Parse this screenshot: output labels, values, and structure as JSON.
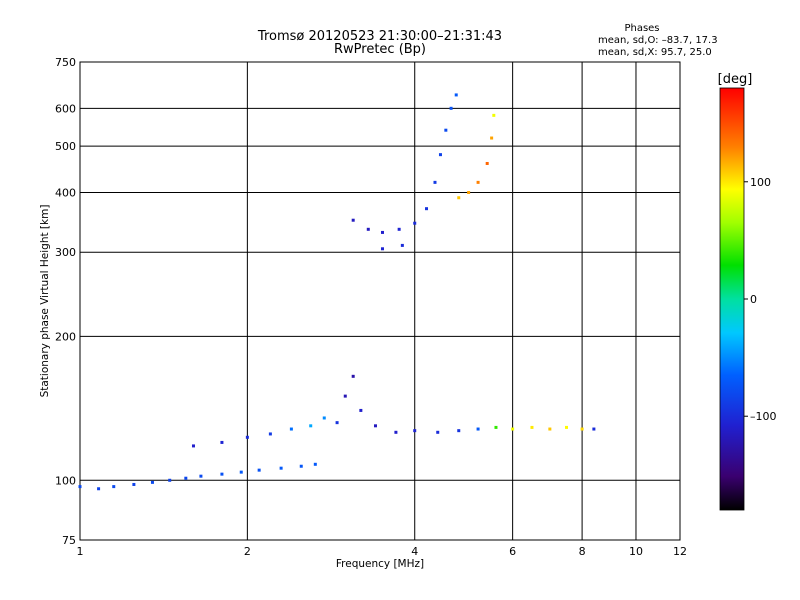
{
  "chart_data": {
    "type": "scatter",
    "title": "Tromsø 20120523 21:30:00–21:31:43",
    "subtitle": "RwPretec (Bp)",
    "xlabel": "Frequency [MHz]",
    "ylabel": "Stationary phase Virtual Height [km]",
    "x_scale": "log",
    "y_scale": "log",
    "xlim": [
      1,
      12
    ],
    "ylim": [
      75,
      750
    ],
    "x_ticks": [
      "1",
      "2",
      "4",
      "6",
      "8",
      "10",
      "12"
    ],
    "y_ticks": [
      "75",
      "100",
      "200",
      "300",
      "400",
      "500",
      "600",
      "750"
    ],
    "grid": true,
    "stats": {
      "heading": "Phases",
      "line_o": "mean, sd,O: –83.7, 17.3",
      "line_x": "mean, sd,X:  95.7, 25.0"
    },
    "colorbar": {
      "label": "[deg]",
      "range": [
        -180,
        180
      ],
      "ticks": [
        "100",
        "0",
        "–100"
      ],
      "tick_values": [
        100,
        0,
        -100
      ]
    },
    "series": [
      {
        "values": [
          {
            "x": 1.0,
            "y": 97,
            "phase": -80
          },
          {
            "x": 1.08,
            "y": 96,
            "phase": -85
          },
          {
            "x": 1.15,
            "y": 97,
            "phase": -80
          },
          {
            "x": 1.25,
            "y": 98,
            "phase": -85
          },
          {
            "x": 1.35,
            "y": 99,
            "phase": -80
          },
          {
            "x": 1.45,
            "y": 100,
            "phase": -85
          },
          {
            "x": 1.55,
            "y": 101,
            "phase": -82
          },
          {
            "x": 1.65,
            "y": 102,
            "phase": -80
          },
          {
            "x": 1.8,
            "y": 103,
            "phase": -75
          },
          {
            "x": 1.95,
            "y": 104,
            "phase": -70
          },
          {
            "x": 2.1,
            "y": 105,
            "phase": -75
          },
          {
            "x": 2.3,
            "y": 106,
            "phase": -70
          },
          {
            "x": 2.5,
            "y": 107,
            "phase": -72
          },
          {
            "x": 2.65,
            "y": 108,
            "phase": -70
          },
          {
            "x": 1.6,
            "y": 118,
            "phase": -110
          },
          {
            "x": 1.8,
            "y": 120,
            "phase": -105
          },
          {
            "x": 2.0,
            "y": 123,
            "phase": -100
          },
          {
            "x": 2.2,
            "y": 125,
            "phase": -90
          },
          {
            "x": 2.4,
            "y": 128,
            "phase": -60
          },
          {
            "x": 2.6,
            "y": 130,
            "phase": -40
          },
          {
            "x": 2.75,
            "y": 135,
            "phase": -50
          },
          {
            "x": 2.9,
            "y": 132,
            "phase": -95
          },
          {
            "x": 3.0,
            "y": 150,
            "phase": -120
          },
          {
            "x": 3.1,
            "y": 165,
            "phase": -125
          },
          {
            "x": 3.2,
            "y": 140,
            "phase": -110
          },
          {
            "x": 3.4,
            "y": 130,
            "phase": -115
          },
          {
            "x": 3.7,
            "y": 126,
            "phase": -110
          },
          {
            "x": 4.0,
            "y": 127,
            "phase": -105
          },
          {
            "x": 4.4,
            "y": 126,
            "phase": -100
          },
          {
            "x": 4.8,
            "y": 127,
            "phase": -95
          },
          {
            "x": 5.2,
            "y": 128,
            "phase": -70
          },
          {
            "x": 5.6,
            "y": 129,
            "phase": 40
          },
          {
            "x": 6.0,
            "y": 128,
            "phase": 90
          },
          {
            "x": 6.5,
            "y": 129,
            "phase": 100
          },
          {
            "x": 7.0,
            "y": 128,
            "phase": 110
          },
          {
            "x": 7.5,
            "y": 129,
            "phase": 95
          },
          {
            "x": 8.0,
            "y": 128,
            "phase": 105
          },
          {
            "x": 8.4,
            "y": 128,
            "phase": -100
          }
        ]
      },
      {
        "values": [
          {
            "x": 3.1,
            "y": 350,
            "phase": -115
          },
          {
            "x": 3.3,
            "y": 335,
            "phase": -115
          },
          {
            "x": 3.5,
            "y": 330,
            "phase": -110
          },
          {
            "x": 3.75,
            "y": 335,
            "phase": -105
          },
          {
            "x": 4.0,
            "y": 345,
            "phase": -100
          },
          {
            "x": 4.2,
            "y": 370,
            "phase": -95
          },
          {
            "x": 4.35,
            "y": 420,
            "phase": -90
          },
          {
            "x": 4.45,
            "y": 480,
            "phase": -85
          },
          {
            "x": 4.55,
            "y": 540,
            "phase": -80
          },
          {
            "x": 4.65,
            "y": 600,
            "phase": -75
          },
          {
            "x": 4.75,
            "y": 640,
            "phase": -70
          },
          {
            "x": 4.8,
            "y": 390,
            "phase": 110
          },
          {
            "x": 5.0,
            "y": 400,
            "phase": 120
          },
          {
            "x": 5.2,
            "y": 420,
            "phase": 130
          },
          {
            "x": 5.4,
            "y": 460,
            "phase": 140
          },
          {
            "x": 5.5,
            "y": 520,
            "phase": 120
          },
          {
            "x": 5.55,
            "y": 580,
            "phase": 90
          },
          {
            "x": 3.5,
            "y": 305,
            "phase": -105
          },
          {
            "x": 3.8,
            "y": 310,
            "phase": -100
          }
        ]
      }
    ]
  }
}
